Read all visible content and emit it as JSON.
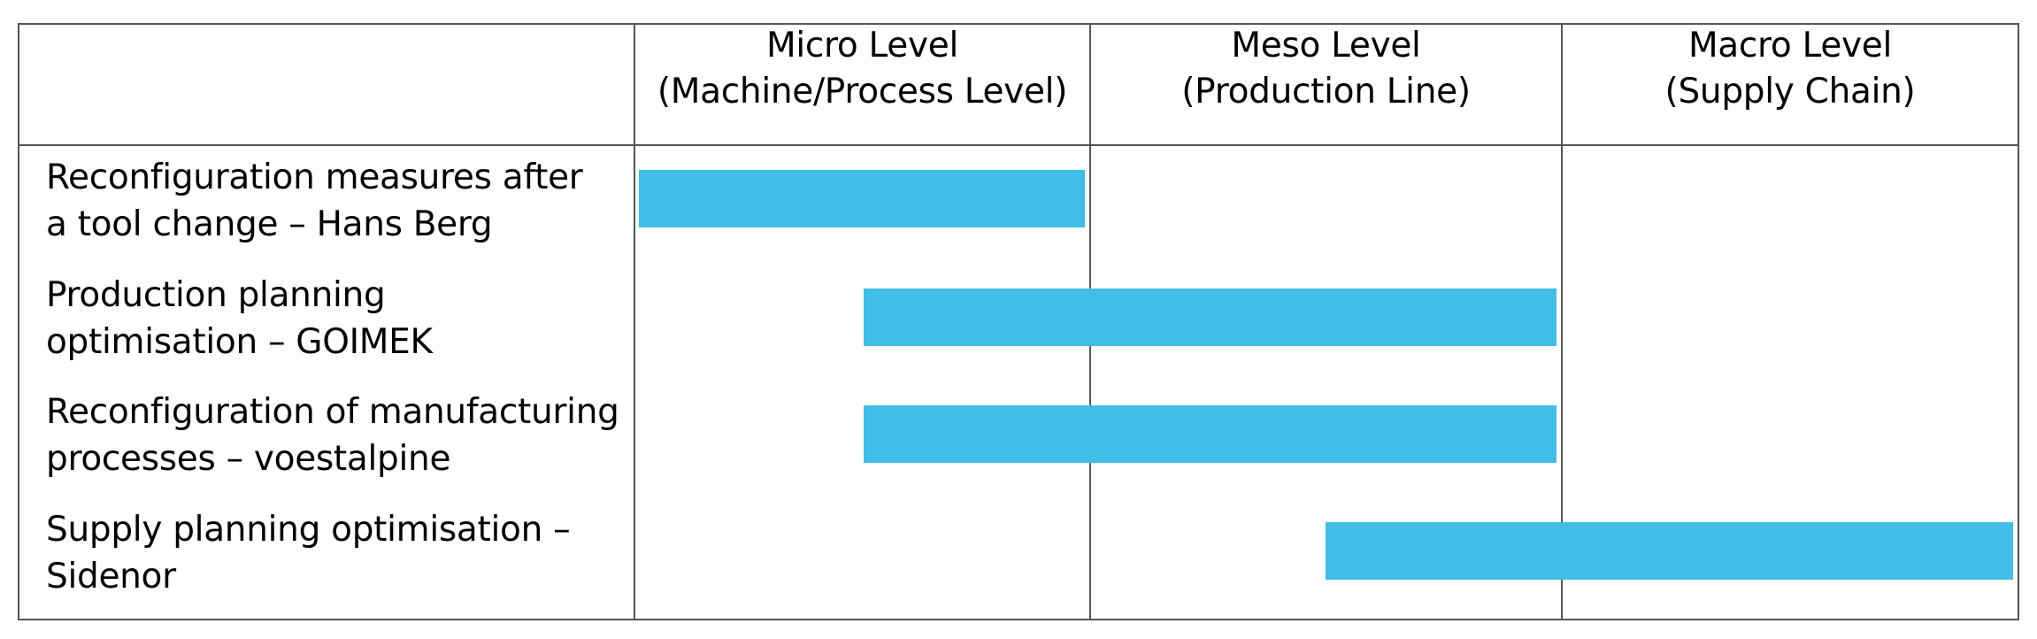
{
  "columns": [
    {
      "line1": "Micro Level",
      "line2": "(Machine/Process Level)"
    },
    {
      "line1": "Meso Level",
      "line2": "(Production Line)"
    },
    {
      "line1": "Macro Level",
      "line2": "(Supply Chain)"
    }
  ],
  "rows": [
    {
      "line1": "Reconfiguration measures after",
      "line2": "a tool change – Hans Berg",
      "span_start": 0.0,
      "span_end": 1.0
    },
    {
      "line1": "Production planning",
      "line2": "optimisation – GOIMEK",
      "span_start": 0.5,
      "span_end": 2.0
    },
    {
      "line1": "Reconfiguration of manufacturing",
      "line2": "processes – voestalpine",
      "span_start": 0.5,
      "span_end": 2.0
    },
    {
      "line1": "Supply planning optimisation –",
      "line2": "Sidenor",
      "span_start": 1.5,
      "span_end": 3.0
    }
  ],
  "colors": {
    "bar": "#41BDE6",
    "grid": "#555555"
  }
}
